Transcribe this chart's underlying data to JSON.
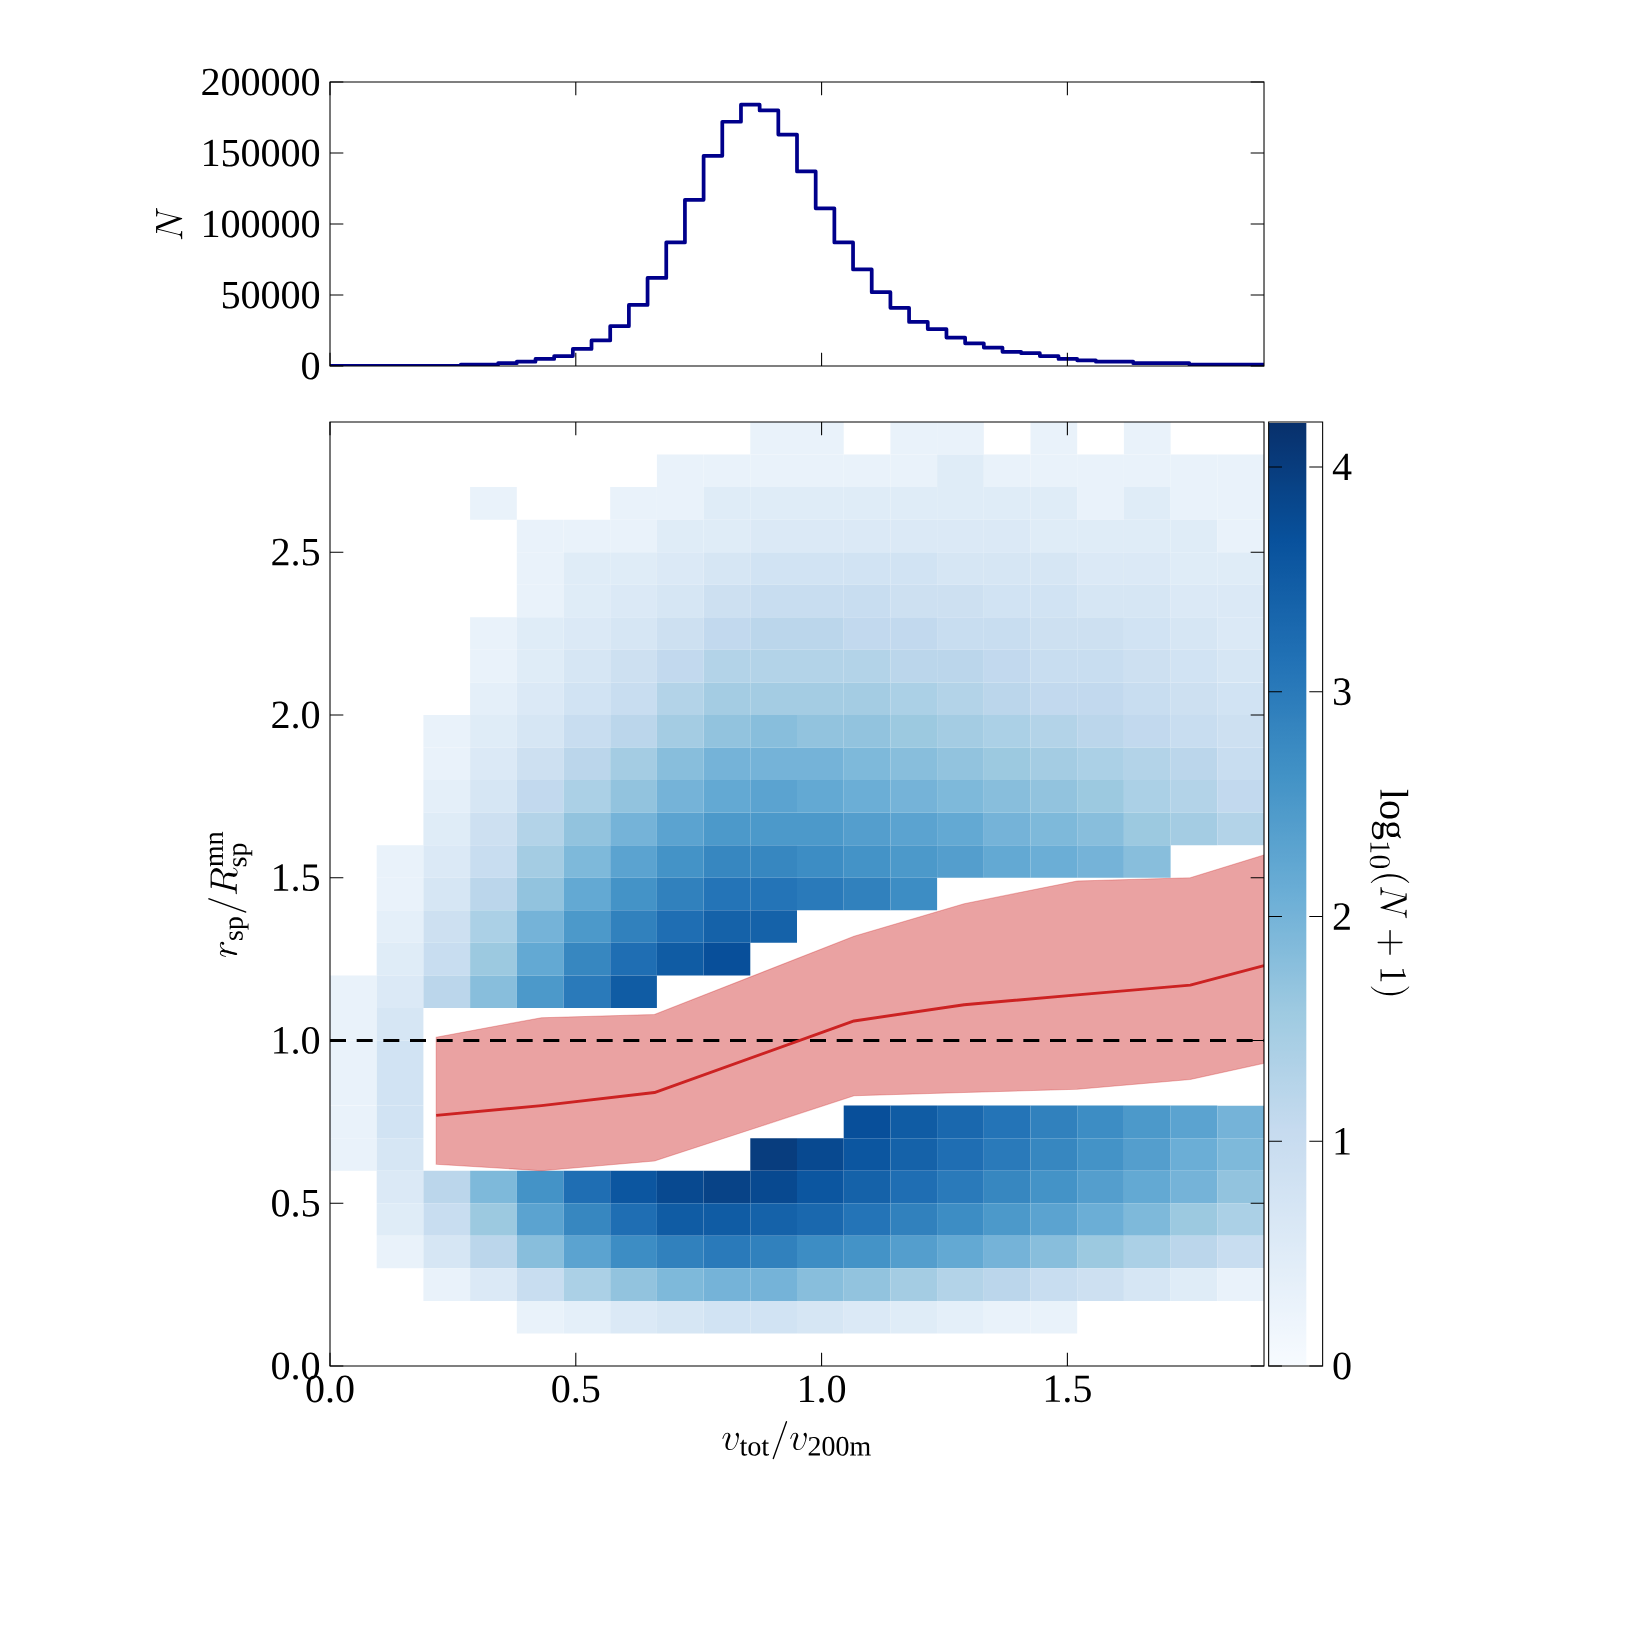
{
  "chart_data": [
    {
      "type": "histogram",
      "ylabel": "N",
      "color": "#00008b",
      "bins": [
        0,
        0.038,
        0.076,
        0.114,
        0.152,
        0.19,
        0.228,
        0.266,
        0.304,
        0.342,
        0.38,
        0.418,
        0.456,
        0.494,
        0.532,
        0.57,
        0.608,
        0.646,
        0.684,
        0.722,
        0.76,
        0.798,
        0.836,
        0.874,
        0.912,
        0.95,
        0.988,
        1.026,
        1.064,
        1.102,
        1.14,
        1.178,
        1.216,
        1.254,
        1.292,
        1.33,
        1.368,
        1.406,
        1.444,
        1.482,
        1.52,
        1.558,
        1.596,
        1.634,
        1.672,
        1.71,
        1.748,
        1.786,
        1.824,
        1.862,
        1.9
      ],
      "values": [
        0,
        0,
        0,
        0,
        0,
        0,
        0,
        1000,
        1000,
        2000,
        3000,
        5000,
        7000,
        12000,
        18000,
        28000,
        43000,
        62000,
        87000,
        117000,
        148000,
        172000,
        184000,
        180000,
        163000,
        137000,
        111000,
        87000,
        68000,
        52000,
        41000,
        31000,
        26000,
        20000,
        16000,
        13000,
        10000,
        9000,
        7000,
        5000,
        4000,
        3000,
        3000,
        2000,
        2000,
        2000,
        1000,
        1000,
        1000,
        1000
      ],
      "xlim": [
        0,
        1.9
      ],
      "ylim": [
        0,
        200000
      ],
      "xticks": [
        0,
        0.5,
        1,
        1.5
      ],
      "yticks": [
        0,
        50000,
        100000,
        150000,
        200000
      ],
      "tick_labels": "y"
    },
    {
      "type": "heatmap",
      "xlabel": "v_{\\rm tot}/v_{\\rm 200m}",
      "ylabel": "r_{\\rm sp}/R_{\\rm sp}^{\\rm mn}",
      "clabel": "\\log_{10}(N+1)",
      "clim": [
        0,
        4.2
      ],
      "cticks": [
        0,
        1,
        2,
        3,
        4
      ],
      "xlim": [
        0,
        1.9
      ],
      "ylim": [
        0,
        2.9
      ],
      "xticks": [
        {
          "value": 0,
          "label": "0.0"
        },
        {
          "value": 0.5,
          "label": "0.5"
        },
        {
          "value": 1,
          "label": "1.0"
        },
        {
          "value": 1.5,
          "label": "1.5"
        }
      ],
      "yticks": [
        {
          "value": 0,
          "label": "0.0"
        },
        {
          "value": 0.5,
          "label": "0.5"
        },
        {
          "value": 1,
          "label": "1.0"
        },
        {
          "value": 1.5,
          "label": "1.5"
        },
        {
          "value": 2,
          "label": "2.0"
        },
        {
          "value": 2.5,
          "label": "2.5"
        }
      ],
      "x": [
        0.0475,
        0.1425,
        0.2375,
        0.3325,
        0.4275,
        0.5225,
        0.6175,
        0.7125,
        0.8075,
        0.9025,
        0.9975,
        1.0925,
        1.1875,
        1.2825,
        1.3775,
        1.4725,
        1.5675,
        1.6625,
        1.7575,
        1.8525
      ],
      "y": [
        2.85,
        2.75,
        2.65,
        2.55,
        2.45,
        2.35,
        2.25,
        2.15,
        2.05,
        1.95,
        1.85,
        1.75,
        1.65,
        1.55,
        1.45,
        1.35,
        1.25,
        1.15,
        1.05,
        0.95,
        0.85,
        0.75,
        0.65,
        0.55,
        0.45,
        0.35,
        0.25,
        0.15
      ],
      "cells": [
        [
          null,
          null,
          null,
          null,
          null,
          null,
          null,
          null,
          null,
          0.3,
          0.3,
          null,
          0.3,
          0.3,
          null,
          0.3,
          null,
          0.3,
          null,
          null
        ],
        [
          null,
          null,
          null,
          null,
          null,
          null,
          null,
          0.3,
          0.3,
          0.3,
          0.3,
          0.3,
          0.3,
          0.5,
          0.3,
          0.3,
          0.3,
          0.3,
          0.3,
          0.3
        ],
        [
          null,
          null,
          null,
          0.3,
          null,
          null,
          0.3,
          0.3,
          0.5,
          0.5,
          0.5,
          0.5,
          0.5,
          0.5,
          0.5,
          0.5,
          0.3,
          0.5,
          0.3,
          0.3
        ],
        [
          null,
          null,
          null,
          null,
          0.3,
          0.3,
          0.3,
          0.5,
          0.5,
          0.6,
          0.6,
          0.6,
          0.6,
          0.6,
          0.6,
          0.5,
          0.5,
          0.5,
          0.5,
          0.3
        ],
        [
          null,
          null,
          null,
          null,
          0.3,
          0.5,
          0.5,
          0.6,
          0.7,
          0.8,
          0.8,
          0.8,
          0.8,
          0.7,
          0.7,
          0.7,
          0.6,
          0.6,
          0.5,
          0.5
        ],
        [
          null,
          null,
          null,
          null,
          0.3,
          0.5,
          0.6,
          0.7,
          0.9,
          1.0,
          1.0,
          1.0,
          0.9,
          0.9,
          0.8,
          0.8,
          0.7,
          0.7,
          0.6,
          0.6
        ],
        [
          null,
          null,
          null,
          0.3,
          0.5,
          0.6,
          0.7,
          0.9,
          1.1,
          1.2,
          1.2,
          1.1,
          1.1,
          1.0,
          1.0,
          0.9,
          0.9,
          0.8,
          0.7,
          0.6
        ],
        [
          null,
          null,
          null,
          0.3,
          0.5,
          0.7,
          0.9,
          1.1,
          1.3,
          1.3,
          1.3,
          1.3,
          1.2,
          1.2,
          1.1,
          1.0,
          1.0,
          0.9,
          0.8,
          0.7
        ],
        [
          null,
          null,
          null,
          0.4,
          0.6,
          0.8,
          1.0,
          1.3,
          1.5,
          1.5,
          1.5,
          1.5,
          1.4,
          1.3,
          1.2,
          1.1,
          1.1,
          1.0,
          0.9,
          0.8
        ],
        [
          null,
          null,
          0.3,
          0.5,
          0.7,
          1.0,
          1.2,
          1.5,
          1.7,
          1.8,
          1.7,
          1.7,
          1.6,
          1.5,
          1.4,
          1.3,
          1.2,
          1.1,
          1.0,
          0.9
        ],
        [
          null,
          null,
          0.3,
          0.6,
          0.9,
          1.2,
          1.5,
          1.8,
          2.0,
          2.0,
          2.0,
          1.9,
          1.8,
          1.7,
          1.6,
          1.5,
          1.4,
          1.3,
          1.2,
          1.0
        ],
        [
          null,
          null,
          0.4,
          0.7,
          1.1,
          1.4,
          1.7,
          2.0,
          2.2,
          2.3,
          2.2,
          2.1,
          2.0,
          1.9,
          1.8,
          1.7,
          1.6,
          1.4,
          1.3,
          1.1
        ],
        [
          null,
          null,
          0.5,
          0.9,
          1.3,
          1.7,
          2.0,
          2.3,
          2.5,
          2.5,
          2.5,
          2.4,
          2.3,
          2.2,
          2.0,
          1.9,
          1.8,
          1.6,
          1.5,
          1.3
        ],
        [
          null,
          0.3,
          0.6,
          1.0,
          1.5,
          1.9,
          2.3,
          2.6,
          2.8,
          2.8,
          2.7,
          2.6,
          2.5,
          2.4,
          2.2,
          2.1,
          2.0,
          1.8,
          null,
          null
        ],
        [
          null,
          0.3,
          0.7,
          1.2,
          1.7,
          2.2,
          2.6,
          2.9,
          3.1,
          3.1,
          3.0,
          2.9,
          2.7,
          null,
          null,
          null,
          null,
          null,
          null,
          null
        ],
        [
          null,
          0.4,
          0.9,
          1.4,
          2.0,
          2.5,
          2.9,
          3.2,
          3.4,
          3.4,
          null,
          null,
          null,
          null,
          null,
          null,
          null,
          null,
          null,
          null
        ],
        [
          null,
          0.5,
          1.0,
          1.6,
          2.2,
          2.8,
          3.2,
          3.5,
          3.7,
          null,
          null,
          null,
          null,
          null,
          null,
          null,
          null,
          null,
          null,
          null
        ],
        [
          0.3,
          0.6,
          1.2,
          1.8,
          2.5,
          3.0,
          3.5,
          null,
          null,
          null,
          null,
          null,
          null,
          null,
          null,
          null,
          null,
          null,
          null,
          null
        ],
        [
          0.3,
          0.7,
          null,
          null,
          null,
          null,
          null,
          null,
          null,
          null,
          null,
          null,
          null,
          null,
          null,
          null,
          null,
          null,
          null,
          null
        ],
        [
          0.3,
          0.8,
          null,
          null,
          null,
          null,
          null,
          null,
          null,
          null,
          null,
          null,
          null,
          null,
          null,
          null,
          null,
          null,
          null,
          null
        ],
        [
          0.3,
          0.8,
          null,
          null,
          null,
          null,
          null,
          null,
          null,
          null,
          null,
          null,
          null,
          null,
          null,
          null,
          null,
          null,
          null,
          null
        ],
        [
          0.3,
          0.8,
          null,
          null,
          null,
          null,
          null,
          null,
          null,
          null,
          null,
          3.7,
          3.5,
          3.3,
          3.1,
          2.9,
          2.7,
          2.5,
          2.3,
          2.0
        ],
        [
          0.3,
          0.7,
          null,
          null,
          null,
          null,
          null,
          null,
          null,
          4.0,
          3.8,
          3.6,
          3.4,
          3.2,
          3.0,
          2.8,
          2.6,
          2.4,
          2.1,
          1.9
        ],
        [
          null,
          0.6,
          1.2,
          1.9,
          2.6,
          3.2,
          3.6,
          3.8,
          3.9,
          3.8,
          3.6,
          3.4,
          3.2,
          3.0,
          2.8,
          2.6,
          2.4,
          2.2,
          2.0,
          1.7
        ],
        [
          null,
          0.5,
          1.0,
          1.6,
          2.3,
          2.8,
          3.2,
          3.5,
          3.5,
          3.4,
          3.3,
          3.1,
          2.9,
          2.7,
          2.5,
          2.3,
          2.1,
          1.9,
          1.6,
          1.4
        ],
        [
          null,
          0.3,
          0.7,
          1.2,
          1.8,
          2.3,
          2.7,
          2.9,
          3.0,
          2.9,
          2.7,
          2.6,
          2.4,
          2.2,
          2.0,
          1.8,
          1.6,
          1.4,
          1.2,
          1.0
        ],
        [
          null,
          null,
          0.3,
          0.6,
          1.0,
          1.4,
          1.7,
          1.9,
          2.0,
          2.0,
          1.8,
          1.7,
          1.5,
          1.3,
          1.2,
          1.0,
          0.9,
          0.7,
          0.5,
          0.3
        ],
        [
          null,
          null,
          null,
          null,
          0.3,
          0.4,
          0.6,
          0.7,
          0.8,
          0.8,
          0.7,
          0.6,
          0.5,
          0.4,
          0.3,
          0.3,
          null,
          null,
          null,
          null
        ]
      ],
      "ref_lines": [
        {
          "axis": "y",
          "value": 1,
          "color": "#000000",
          "line_style": "dashed"
        }
      ],
      "series": [
        {
          "type": "line",
          "color": "#cc2222",
          "x": [
            0.216,
            0.43,
            0.66,
            1.066,
            1.29,
            1.52,
            1.75,
            1.9
          ],
          "values": [
            0.77,
            0.8,
            0.84,
            1.06,
            1.11,
            1.14,
            1.17,
            1.23
          ],
          "lower": [
            0.62,
            0.6,
            0.63,
            0.83,
            0.84,
            0.85,
            0.88,
            0.93
          ],
          "upper": [
            1.01,
            1.07,
            1.08,
            1.32,
            1.42,
            1.49,
            1.5,
            1.57
          ]
        }
      ]
    }
  ]
}
